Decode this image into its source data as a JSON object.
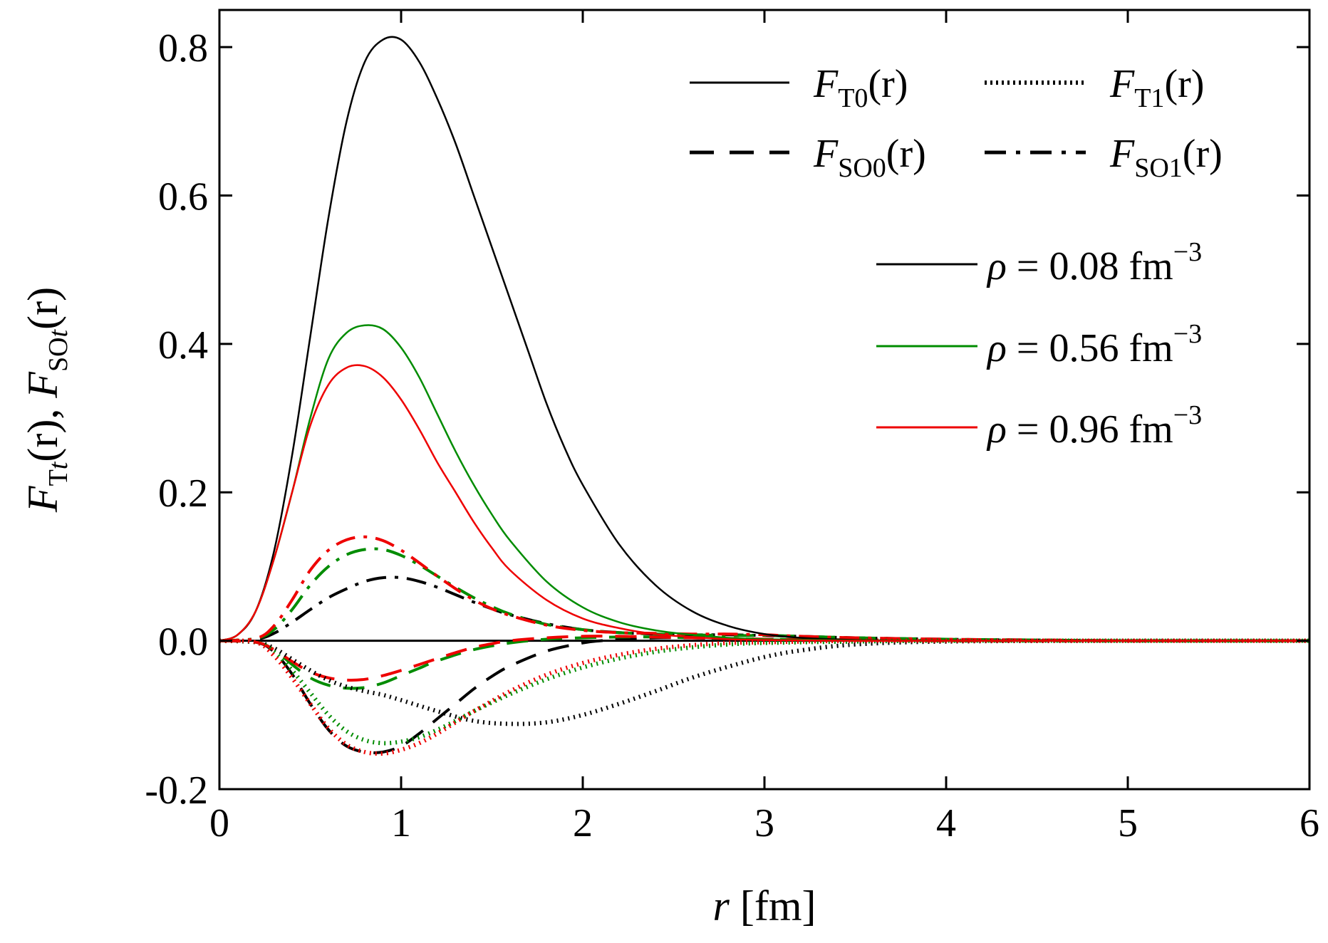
{
  "chart_data": {
    "type": "line",
    "title": "",
    "xlabel": {
      "var": "r",
      "unit": "[fm]"
    },
    "ylabel": {
      "t_F": "F",
      "t_sub": "T",
      "t_sub_var": "t",
      "t_arg": "(r)",
      "sep": ",",
      "s_F": "F",
      "s_sub": "SO",
      "s_sub_var": "t",
      "s_arg": "(r)"
    },
    "xlim": [
      0,
      6
    ],
    "ylim": [
      -0.2,
      0.85
    ],
    "xticks": [
      "0",
      "1",
      "2",
      "3",
      "4",
      "5",
      "6"
    ],
    "yticks": [
      "-0.2",
      "0.0",
      "0.2",
      "0.4",
      "0.6",
      "0.8"
    ],
    "colors": {
      "0.08": "#000000",
      "0.56": "#008c00",
      "0.96": "#ee0000"
    },
    "legend_functions": [
      {
        "key": "T0",
        "F": "F",
        "sub": "T0",
        "arg": "(r)",
        "style": "solid"
      },
      {
        "key": "T1",
        "F": "F",
        "sub": "T1",
        "arg": "(r)",
        "style": "dotted"
      },
      {
        "key": "SO0",
        "F": "F",
        "sub": "SO0",
        "arg": "(r)",
        "style": "dashed"
      },
      {
        "key": "SO1",
        "F": "F",
        "sub": "SO1",
        "arg": "(r)",
        "style": "dashdot"
      }
    ],
    "legend_densities": [
      {
        "key": "0.08",
        "symbol": "ρ",
        "text": " = 0.08 fm",
        "exp": "−3"
      },
      {
        "key": "0.56",
        "symbol": "ρ",
        "text": " = 0.56 fm",
        "exp": "−3"
      },
      {
        "key": "0.96",
        "symbol": "ρ",
        "text": " = 0.96 fm",
        "exp": "−3"
      }
    ],
    "series": [
      {
        "name": "F_T0 rho=0.08",
        "func": "T0",
        "density": "0.08",
        "x": [
          0,
          0.1,
          0.2,
          0.3,
          0.4,
          0.5,
          0.6,
          0.7,
          0.8,
          0.9,
          1.0,
          1.1,
          1.2,
          1.3,
          1.4,
          1.5,
          1.6,
          1.7,
          1.8,
          1.9,
          2.0,
          2.2,
          2.4,
          2.6,
          2.8,
          3.0,
          3.2,
          3.5,
          4.0,
          5.0,
          6.0
        ],
        "y": [
          0,
          0.008,
          0.04,
          0.12,
          0.25,
          0.41,
          0.57,
          0.7,
          0.78,
          0.81,
          0.81,
          0.78,
          0.73,
          0.67,
          0.6,
          0.53,
          0.46,
          0.39,
          0.32,
          0.26,
          0.21,
          0.13,
          0.075,
          0.04,
          0.02,
          0.009,
          0.004,
          0.001,
          0,
          0,
          0
        ]
      },
      {
        "name": "F_T0 rho=0.56",
        "func": "T0",
        "density": "0.56",
        "x": [
          0,
          0.1,
          0.2,
          0.3,
          0.4,
          0.5,
          0.6,
          0.7,
          0.8,
          0.9,
          1.0,
          1.1,
          1.2,
          1.3,
          1.4,
          1.5,
          1.6,
          1.8,
          2.0,
          2.2,
          2.4,
          2.6,
          2.8,
          3.0,
          3.5,
          4.0,
          5.0,
          6.0
        ],
        "y": [
          0,
          0.008,
          0.04,
          0.11,
          0.2,
          0.3,
          0.38,
          0.415,
          0.425,
          0.42,
          0.395,
          0.355,
          0.305,
          0.255,
          0.21,
          0.17,
          0.135,
          0.08,
          0.045,
          0.025,
          0.014,
          0.008,
          0.004,
          0.002,
          0.0005,
          0,
          0,
          0
        ]
      },
      {
        "name": "F_T0 rho=0.96",
        "func": "T0",
        "density": "0.96",
        "x": [
          0,
          0.1,
          0.2,
          0.3,
          0.4,
          0.5,
          0.6,
          0.7,
          0.8,
          0.9,
          1.0,
          1.1,
          1.2,
          1.3,
          1.4,
          1.5,
          1.6,
          1.8,
          2.0,
          2.2,
          2.4,
          2.6,
          2.8,
          3.0,
          3.5,
          4.0,
          5.0,
          6.0
        ],
        "y": [
          0,
          0.008,
          0.04,
          0.11,
          0.2,
          0.29,
          0.345,
          0.368,
          0.37,
          0.355,
          0.325,
          0.285,
          0.24,
          0.2,
          0.16,
          0.125,
          0.095,
          0.055,
          0.03,
          0.017,
          0.009,
          0.005,
          0.002,
          0.001,
          0,
          0,
          0,
          0
        ]
      },
      {
        "name": "F_T1 rho=0.08",
        "func": "T1",
        "density": "0.08",
        "x": [
          0,
          0.2,
          0.3,
          0.4,
          0.5,
          0.6,
          0.7,
          0.8,
          0.9,
          1.0,
          1.2,
          1.4,
          1.6,
          1.8,
          2.0,
          2.2,
          2.4,
          2.6,
          2.8,
          3.0,
          3.2,
          3.5,
          4.0,
          5.0,
          6.0
        ],
        "y": [
          0,
          -0.002,
          -0.01,
          -0.025,
          -0.04,
          -0.053,
          -0.062,
          -0.068,
          -0.073,
          -0.08,
          -0.095,
          -0.108,
          -0.112,
          -0.11,
          -0.1,
          -0.085,
          -0.068,
          -0.05,
          -0.035,
          -0.022,
          -0.013,
          -0.005,
          -0.001,
          0,
          0
        ]
      },
      {
        "name": "F_T1 rho=0.56",
        "func": "T1",
        "density": "0.56",
        "x": [
          0,
          0.2,
          0.3,
          0.4,
          0.5,
          0.6,
          0.7,
          0.8,
          0.9,
          1.0,
          1.1,
          1.2,
          1.3,
          1.4,
          1.6,
          1.8,
          2.0,
          2.2,
          2.4,
          2.6,
          2.8,
          3.0,
          3.5,
          4.0,
          5.0,
          6.0
        ],
        "y": [
          0,
          -0.002,
          -0.015,
          -0.04,
          -0.07,
          -0.1,
          -0.122,
          -0.134,
          -0.138,
          -0.136,
          -0.13,
          -0.12,
          -0.108,
          -0.095,
          -0.072,
          -0.052,
          -0.036,
          -0.024,
          -0.015,
          -0.009,
          -0.005,
          -0.003,
          -0.001,
          0,
          0,
          0
        ]
      },
      {
        "name": "F_T1 rho=0.96",
        "func": "T1",
        "density": "0.96",
        "x": [
          0,
          0.2,
          0.3,
          0.4,
          0.5,
          0.6,
          0.7,
          0.8,
          0.9,
          1.0,
          1.1,
          1.2,
          1.3,
          1.4,
          1.6,
          1.8,
          2.0,
          2.2,
          2.4,
          2.6,
          2.8,
          3.0,
          3.5,
          4.0,
          5.0,
          6.0
        ],
        "y": [
          0,
          -0.002,
          -0.02,
          -0.05,
          -0.085,
          -0.118,
          -0.14,
          -0.15,
          -0.152,
          -0.147,
          -0.138,
          -0.125,
          -0.11,
          -0.095,
          -0.068,
          -0.046,
          -0.03,
          -0.019,
          -0.011,
          -0.006,
          -0.003,
          -0.002,
          0,
          0,
          0,
          0
        ]
      },
      {
        "name": "F_SO0 rho=0.08",
        "func": "SO0",
        "density": "0.08",
        "x": [
          0,
          0.2,
          0.3,
          0.4,
          0.5,
          0.6,
          0.7,
          0.8,
          0.9,
          1.0,
          1.1,
          1.2,
          1.3,
          1.4,
          1.5,
          1.6,
          1.8,
          2.0,
          2.1,
          2.2,
          2.4,
          2.6,
          2.8,
          3.0,
          3.5,
          4.0,
          5.0,
          6.0
        ],
        "y": [
          0,
          -0.002,
          -0.015,
          -0.045,
          -0.085,
          -0.12,
          -0.142,
          -0.15,
          -0.15,
          -0.142,
          -0.125,
          -0.105,
          -0.085,
          -0.065,
          -0.048,
          -0.034,
          -0.014,
          -0.003,
          0,
          0.002,
          0.004,
          0.004,
          0.003,
          0.002,
          0.001,
          0,
          0,
          0
        ]
      },
      {
        "name": "F_SO0 rho=0.56",
        "func": "SO0",
        "density": "0.56",
        "x": [
          0,
          0.2,
          0.3,
          0.4,
          0.5,
          0.6,
          0.7,
          0.8,
          0.9,
          1.0,
          1.1,
          1.2,
          1.4,
          1.6,
          1.8,
          2.0,
          2.2,
          2.4,
          2.6,
          2.8,
          3.0,
          3.5,
          4.0,
          5.0,
          6.0
        ],
        "y": [
          0,
          -0.002,
          -0.012,
          -0.032,
          -0.05,
          -0.06,
          -0.064,
          -0.063,
          -0.057,
          -0.047,
          -0.037,
          -0.027,
          -0.012,
          -0.003,
          0.002,
          0.004,
          0.005,
          0.005,
          0.004,
          0.003,
          0.002,
          0.001,
          0,
          0,
          0
        ]
      },
      {
        "name": "F_SO0 rho=0.96",
        "func": "SO0",
        "density": "0.96",
        "x": [
          0,
          0.2,
          0.3,
          0.4,
          0.5,
          0.6,
          0.7,
          0.8,
          0.9,
          1.0,
          1.1,
          1.2,
          1.3,
          1.4,
          1.5,
          1.6,
          1.8,
          2.0,
          2.2,
          2.4,
          2.6,
          2.8,
          3.0,
          3.5,
          4.0,
          5.0,
          6.0
        ],
        "y": [
          0,
          -0.002,
          -0.012,
          -0.028,
          -0.042,
          -0.05,
          -0.053,
          -0.052,
          -0.047,
          -0.04,
          -0.032,
          -0.024,
          -0.016,
          -0.009,
          -0.004,
          0,
          0.004,
          0.006,
          0.006,
          0.005,
          0.004,
          0.003,
          0.002,
          0.001,
          0,
          0,
          0
        ]
      },
      {
        "name": "F_SO1 rho=0.08",
        "func": "SO1",
        "density": "0.08",
        "x": [
          0,
          0.2,
          0.3,
          0.4,
          0.5,
          0.6,
          0.7,
          0.8,
          0.9,
          1.0,
          1.1,
          1.2,
          1.3,
          1.4,
          1.5,
          1.6,
          1.8,
          2.0,
          2.2,
          2.4,
          2.6,
          2.8,
          3.0,
          3.2,
          3.5,
          4.0,
          4.5,
          5.0,
          6.0
        ],
        "y": [
          0,
          0.002,
          0.01,
          0.025,
          0.042,
          0.058,
          0.07,
          0.08,
          0.085,
          0.085,
          0.08,
          0.072,
          0.062,
          0.052,
          0.043,
          0.035,
          0.023,
          0.015,
          0.011,
          0.009,
          0.008,
          0.008,
          0.007,
          0.006,
          0.004,
          0.002,
          0.001,
          0,
          0
        ]
      },
      {
        "name": "F_SO1 rho=0.56",
        "func": "SO1",
        "density": "0.56",
        "x": [
          0,
          0.2,
          0.3,
          0.4,
          0.5,
          0.6,
          0.7,
          0.8,
          0.9,
          1.0,
          1.1,
          1.2,
          1.3,
          1.4,
          1.5,
          1.6,
          1.8,
          2.0,
          2.2,
          2.4,
          2.6,
          2.8,
          3.0,
          3.2,
          3.5,
          4.0,
          4.5,
          5.0,
          6.0
        ],
        "y": [
          0,
          0.003,
          0.015,
          0.042,
          0.075,
          0.1,
          0.116,
          0.123,
          0.123,
          0.115,
          0.102,
          0.087,
          0.072,
          0.058,
          0.046,
          0.036,
          0.022,
          0.015,
          0.011,
          0.009,
          0.008,
          0.007,
          0.007,
          0.006,
          0.004,
          0.002,
          0.001,
          0,
          0
        ]
      },
      {
        "name": "F_SO1 rho=0.96",
        "func": "SO1",
        "density": "0.96",
        "x": [
          0,
          0.2,
          0.3,
          0.4,
          0.5,
          0.6,
          0.7,
          0.8,
          0.9,
          1.0,
          1.1,
          1.2,
          1.3,
          1.4,
          1.5,
          1.6,
          1.8,
          2.0,
          2.2,
          2.4,
          2.6,
          2.8,
          3.0,
          3.2,
          3.5,
          4.0,
          4.5,
          5.0,
          6.0
        ],
        "y": [
          0,
          0.003,
          0.02,
          0.055,
          0.095,
          0.122,
          0.136,
          0.14,
          0.135,
          0.122,
          0.105,
          0.087,
          0.07,
          0.055,
          0.043,
          0.034,
          0.021,
          0.014,
          0.011,
          0.01,
          0.009,
          0.009,
          0.008,
          0.006,
          0.004,
          0.002,
          0.001,
          0,
          0
        ]
      }
    ]
  }
}
